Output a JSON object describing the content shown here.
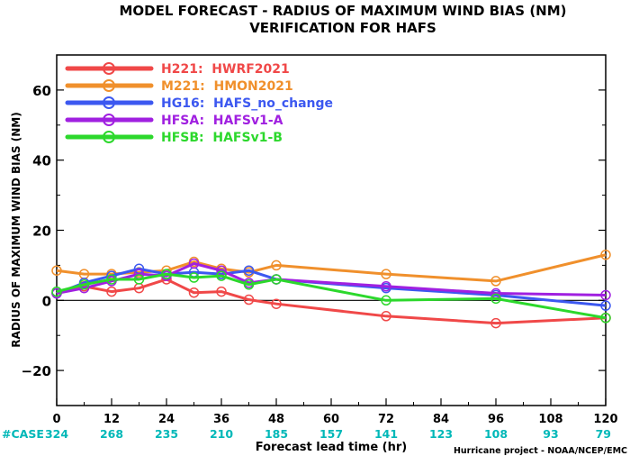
{
  "chart_data": {
    "type": "line",
    "title": "MODEL FORECAST - RADIUS OF MAXIMUM WIND BIAS (NM)",
    "subtitle": "VERIFICATION FOR HAFS",
    "xlabel": "Forecast lead time (hr)",
    "ylabel": "RADIUS OF MAXIMUM WIND BIAS (NM)",
    "xlim": [
      0,
      120
    ],
    "ylim": [
      -30,
      70
    ],
    "x_ticks": [
      0,
      12,
      24,
      36,
      48,
      60,
      72,
      84,
      96,
      108,
      120
    ],
    "y_ticks": [
      -20,
      0,
      20,
      40,
      60
    ],
    "y_tick_labels": [
      "−20",
      "0",
      "20",
      "40",
      "60"
    ],
    "case_label": "#CASE",
    "case_counts": [
      "324",
      "268",
      "235",
      "210",
      "185",
      "157",
      "141",
      "123",
      "108",
      "93",
      "79"
    ],
    "credit": "Hurricane project - NOAA/NCEP/EMC",
    "grid": false,
    "legend_position": "top-left",
    "series": [
      {
        "name": "H221:  HWRF2021",
        "color": "#f04848",
        "x": [
          0,
          6,
          12,
          18,
          24,
          30,
          36,
          42,
          48,
          72,
          96,
          120
        ],
        "y": [
          2.0,
          4.0,
          2.5,
          3.5,
          6.0,
          2.2,
          2.5,
          0.2,
          -1.0,
          -4.5,
          -6.5,
          -5.0
        ]
      },
      {
        "name": "M221:  HMON2021",
        "color": "#f0902c",
        "x": [
          0,
          6,
          12,
          18,
          24,
          30,
          36,
          42,
          48,
          72,
          96,
          120
        ],
        "y": [
          8.5,
          7.5,
          7.5,
          8.0,
          8.5,
          11.0,
          9.0,
          8.0,
          10.0,
          7.5,
          5.5,
          13.0
        ]
      },
      {
        "name": "HG16:  HAFS_no_change",
        "color": "#3c58f0",
        "x": [
          0,
          6,
          12,
          18,
          24,
          30,
          36,
          42,
          48,
          72,
          96,
          120
        ],
        "y": [
          2.0,
          5.0,
          7.0,
          9.0,
          7.5,
          8.0,
          7.5,
          8.5,
          6.0,
          3.5,
          1.5,
          -1.5
        ]
      },
      {
        "name": "HFSA:  HAFSv1-A",
        "color": "#a020e0",
        "x": [
          0,
          6,
          12,
          18,
          24,
          30,
          36,
          42,
          48,
          72,
          96,
          120
        ],
        "y": [
          2.0,
          3.5,
          5.5,
          7.5,
          7.0,
          10.5,
          8.5,
          5.0,
          6.0,
          4.0,
          2.0,
          1.5
        ]
      },
      {
        "name": "HFSB:  HAFSv1-B",
        "color": "#2cd82c",
        "x": [
          0,
          6,
          12,
          18,
          24,
          30,
          36,
          42,
          48,
          72,
          96,
          120
        ],
        "y": [
          2.5,
          4.5,
          6.0,
          6.0,
          7.5,
          6.5,
          7.0,
          4.5,
          6.0,
          0.0,
          0.5,
          -5.0
        ]
      }
    ]
  }
}
